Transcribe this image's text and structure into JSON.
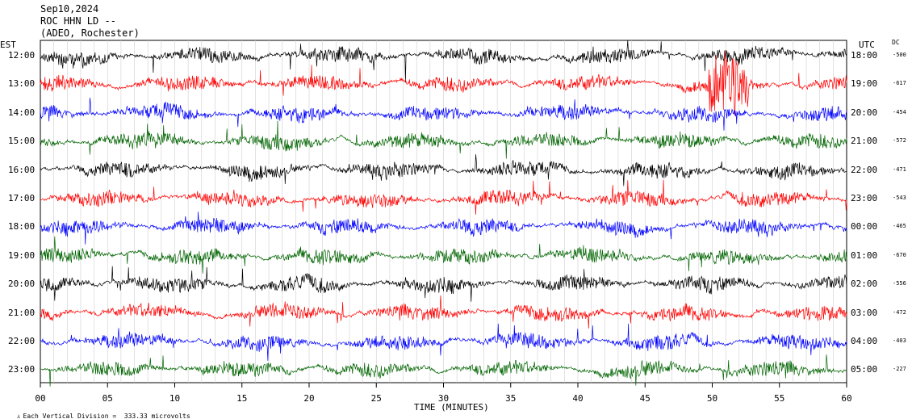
{
  "header": {
    "date": "Sep10,2024",
    "station": "ROC HHN LD --",
    "network": "(ADEO, Rochester)"
  },
  "left_corner": "EST",
  "right_corner": "UTC",
  "dc_label": "DC",
  "scale_note": "Each Vertical Division =  333.33 microvolts",
  "chart_data": {
    "type": "line",
    "title": "",
    "xlabel": "TIME (MINUTES)",
    "ylabel": "",
    "xlim": [
      0,
      60
    ],
    "x_ticks": [
      "00",
      "05",
      "10",
      "15",
      "20",
      "25",
      "30",
      "35",
      "40",
      "45",
      "50",
      "55",
      "60"
    ],
    "grid": true,
    "series_colors": [
      "#000000",
      "#ff0000",
      "#0000ff",
      "#006400"
    ],
    "rows": [
      {
        "est": "12:00",
        "utc": "18:00",
        "dc": "-500",
        "color": "#000000"
      },
      {
        "est": "13:00",
        "utc": "19:00",
        "dc": "-617",
        "color": "#ff0000"
      },
      {
        "est": "14:00",
        "utc": "20:00",
        "dc": "-454",
        "color": "#0000ff"
      },
      {
        "est": "15:00",
        "utc": "21:00",
        "dc": "-572",
        "color": "#006400"
      },
      {
        "est": "16:00",
        "utc": "22:00",
        "dc": "-471",
        "color": "#000000"
      },
      {
        "est": "17:00",
        "utc": "23:00",
        "dc": "-543",
        "color": "#ff0000"
      },
      {
        "est": "18:00",
        "utc": "00:00",
        "dc": "-465",
        "color": "#0000ff"
      },
      {
        "est": "19:00",
        "utc": "01:00",
        "dc": "-670",
        "color": "#006400"
      },
      {
        "est": "20:00",
        "utc": "02:00",
        "dc": "-556",
        "color": "#000000"
      },
      {
        "est": "21:00",
        "utc": "03:00",
        "dc": "-472",
        "color": "#ff0000"
      },
      {
        "est": "22:00",
        "utc": "04:00",
        "dc": "-403",
        "color": "#0000ff"
      },
      {
        "est": "23:00",
        "utc": "05:00",
        "dc": "-227",
        "color": "#006400"
      }
    ]
  }
}
